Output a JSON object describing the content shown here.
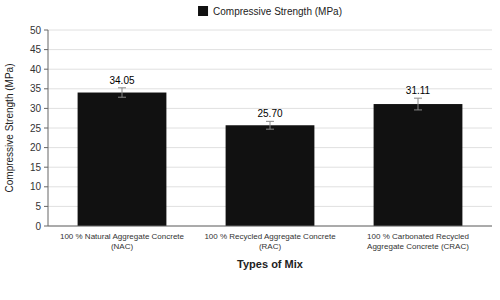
{
  "chart_data": {
    "type": "bar",
    "categories": [
      "100 % Natural Aggregate Concrete\n(NAC)",
      "100 % Recycled Aggregate Concrete\n(RAC)",
      "100 % Carbonated Recycled\nAggregate Concrete (CRAC)"
    ],
    "series": [
      {
        "name": "Compressive Strength (MPa)",
        "color": "#111111",
        "values": [
          34.05,
          25.7,
          31.11
        ],
        "errors": [
          1.2,
          1.0,
          1.5
        ],
        "value_labels": [
          "34.05",
          "25.70",
          "31.11"
        ]
      }
    ],
    "xlabel": "Types of Mix",
    "ylabel": "Compressive Strength (MPa)",
    "ylim": [
      0,
      50
    ],
    "yticks": [
      0,
      5,
      10,
      15,
      20,
      25,
      30,
      35,
      40,
      45,
      50
    ],
    "grid": true,
    "legend": "top",
    "data_labels": true
  }
}
